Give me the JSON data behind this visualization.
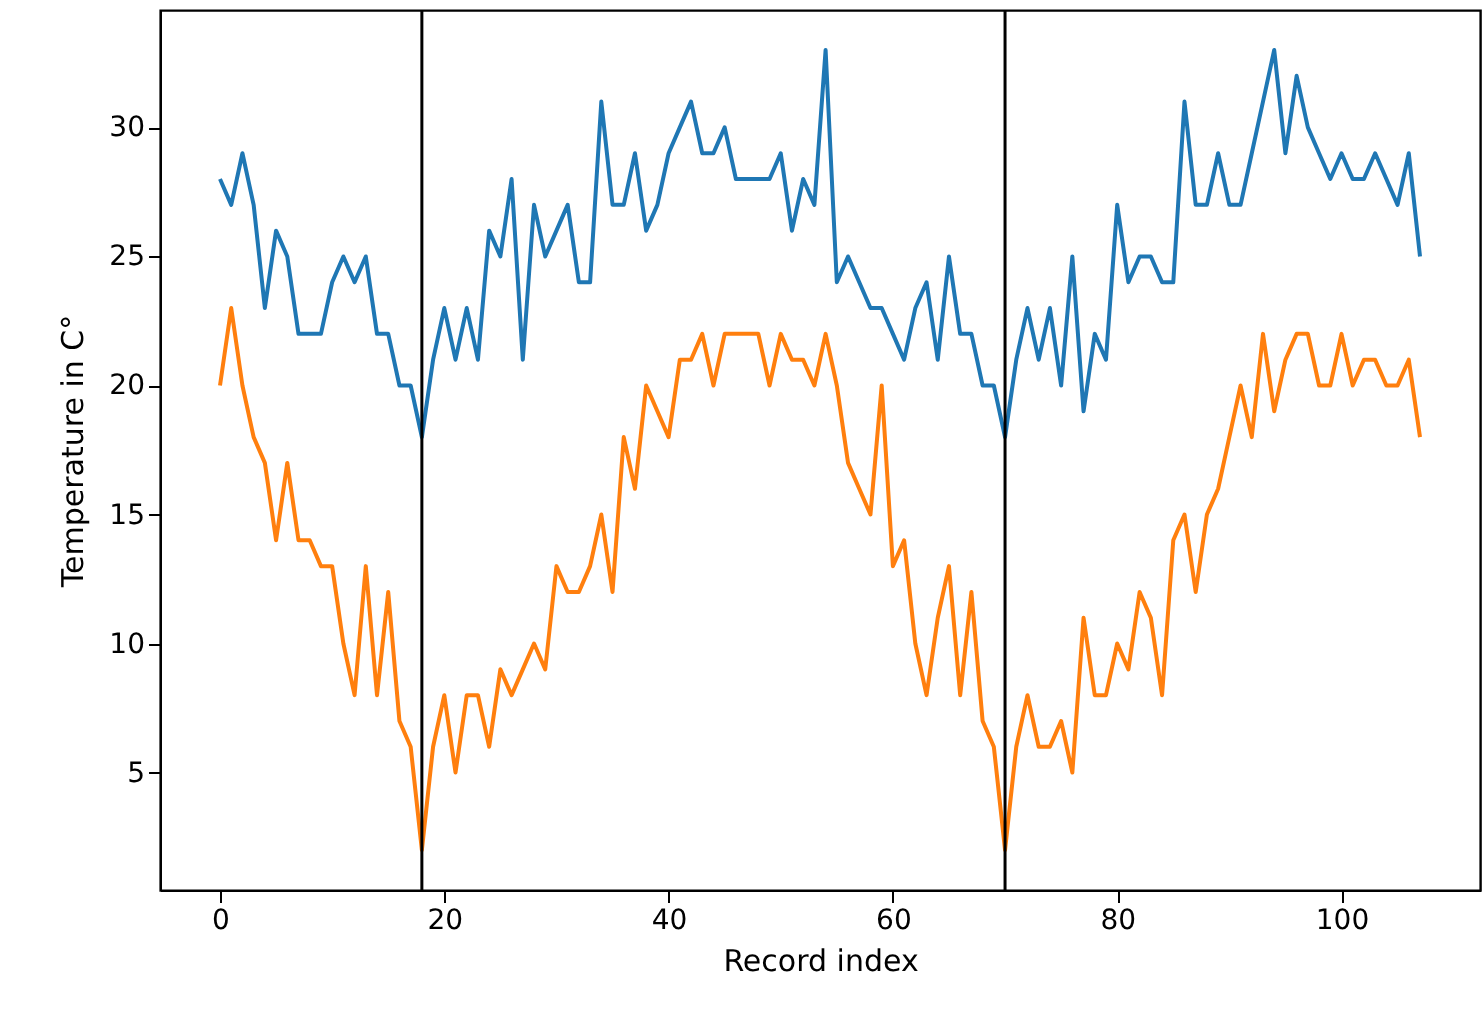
{
  "chart_data": {
    "type": "line",
    "xlabel": "Record index",
    "ylabel": "Temperature in C°",
    "x": [
      0,
      1,
      2,
      3,
      4,
      5,
      6,
      7,
      8,
      9,
      10,
      11,
      12,
      13,
      14,
      15,
      16,
      17,
      18,
      19,
      20,
      21,
      22,
      23,
      24,
      25,
      26,
      27,
      28,
      29,
      30,
      31,
      32,
      33,
      34,
      35,
      36,
      37,
      38,
      39,
      40,
      41,
      42,
      43,
      44,
      45,
      46,
      47,
      48,
      49,
      50,
      51,
      52,
      53,
      54,
      55,
      56,
      57,
      58,
      59,
      60,
      61,
      62,
      63,
      64,
      65,
      66,
      67,
      68,
      69,
      70,
      71,
      72,
      73,
      74,
      75,
      76,
      77,
      78,
      79,
      80,
      81,
      82,
      83,
      84,
      85,
      86,
      87,
      88,
      89,
      90,
      91,
      92,
      93,
      94,
      95,
      96,
      97,
      98,
      99,
      100,
      101,
      102,
      103,
      104,
      105,
      106,
      107
    ],
    "series": [
      {
        "color": "#1f77b4",
        "values": [
          28,
          27,
          29,
          27,
          23,
          26,
          25,
          22,
          22,
          22,
          24,
          25,
          24,
          25,
          22,
          22,
          20,
          20,
          18,
          21,
          23,
          21,
          23,
          21,
          26,
          25,
          28,
          21,
          27,
          25,
          26,
          27,
          24,
          24,
          31,
          27,
          27,
          29,
          26,
          27,
          29,
          30,
          31,
          29,
          29,
          30,
          28,
          28,
          28,
          28,
          29,
          26,
          28,
          27,
          33,
          24,
          25,
          24,
          23,
          23,
          22,
          21,
          23,
          24,
          21,
          25,
          22,
          22,
          20,
          20,
          18,
          21,
          23,
          21,
          23,
          20,
          25,
          19,
          22,
          21,
          27,
          24,
          25,
          25,
          24,
          24,
          31,
          27,
          27,
          29,
          27,
          27,
          29,
          31,
          33,
          29,
          32,
          30,
          29,
          28,
          29,
          28,
          28,
          29,
          28,
          27,
          29,
          25
        ]
      },
      {
        "color": "#ff7f0e",
        "values": [
          20,
          23,
          20,
          18,
          17,
          14,
          17,
          14,
          14,
          13,
          13,
          10,
          8,
          13,
          8,
          12,
          7,
          6,
          2,
          6,
          8,
          5,
          8,
          8,
          6,
          9,
          8,
          9,
          10,
          9,
          13,
          12,
          12,
          13,
          15,
          12,
          18,
          16,
          20,
          19,
          18,
          21,
          21,
          22,
          20,
          22,
          22,
          22,
          22,
          20,
          22,
          21,
          21,
          20,
          22,
          20,
          17,
          16,
          15,
          20,
          13,
          14,
          10,
          8,
          11,
          13,
          8,
          12,
          7,
          6,
          2,
          6,
          8,
          6,
          6,
          7,
          5,
          11,
          8,
          8,
          10,
          9,
          12,
          11,
          8,
          14,
          15,
          12,
          15,
          16,
          18,
          20,
          18,
          22,
          19,
          21,
          22,
          22,
          20,
          20,
          22,
          20,
          21,
          21,
          20,
          20,
          21,
          18
        ]
      }
    ],
    "xlim": [
      -5.35,
      112.35
    ],
    "ylim": [
      0.45,
      34.55
    ],
    "xticks": [
      0,
      20,
      40,
      60,
      80,
      100
    ],
    "yticks": [
      5,
      10,
      15,
      20,
      25,
      30
    ],
    "ref_lines": [
      {
        "axis": "x",
        "value": 18,
        "color": "#000000"
      },
      {
        "axis": "x",
        "value": 70,
        "color": "#000000"
      }
    ]
  }
}
